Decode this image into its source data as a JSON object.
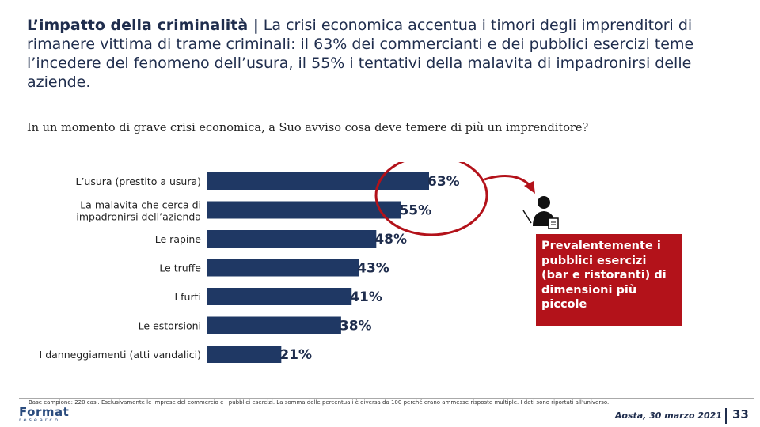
{
  "header": {
    "title_lead": "L’impatto della criminalità |",
    "title_text": " La crisi economica accentua i timori degli imprenditori di rimanere vittima di trame criminali: il 63% dei commercianti e dei pubblici esercizi teme l’incedere del fenomeno dell’usura, il 55% i tentativi della malavita di impadronirsi delle aziende."
  },
  "question": "In un momento di grave crisi economica, a Suo avviso cosa deve temere di più un imprenditore?",
  "chart_data": {
    "type": "bar",
    "orientation": "horizontal",
    "categories": [
      "L’usura (prestito a usura)",
      "La malavita che cerca di impadronirsi dell’azienda",
      "Le rapine",
      "Le truffe",
      "I furti",
      "Le estorsioni",
      "I danneggiamenti (atti vandalici)"
    ],
    "category_lines": [
      [
        "L’usura (prestito a usura)"
      ],
      [
        "La malavita che cerca di",
        "impadronirsi dell’azienda"
      ],
      [
        "Le rapine"
      ],
      [
        "Le truffe"
      ],
      [
        "I furti"
      ],
      [
        "Le estorsioni"
      ],
      [
        "I danneggiamenti (atti vandalici)"
      ]
    ],
    "values": [
      63,
      55,
      48,
      43,
      41,
      38,
      21
    ],
    "value_suffix": "%",
    "bar_color": "#1f3864",
    "highlight_color": "#b3121a",
    "highlighted": [
      0,
      1
    ],
    "xlim": [
      0,
      63
    ]
  },
  "callout": {
    "text": "Prevalentemente i pubblici esercizi (bar e ristoranti) di dimensioni più piccole",
    "color": "#b3121a",
    "icon": "businessman-icon"
  },
  "footer": {
    "footnote": "Base campione: 220 casi. Esclusivamente le imprese del commercio e i pubblici esercizi. La somma delle percentuali è diversa da 100 perché erano ammesse risposte multiple. I dati sono riportati all’universo.",
    "logo_main": "Format",
    "logo_sub": "research",
    "date_place": "Aosta, 30 marzo 2021",
    "page_number": "33"
  }
}
